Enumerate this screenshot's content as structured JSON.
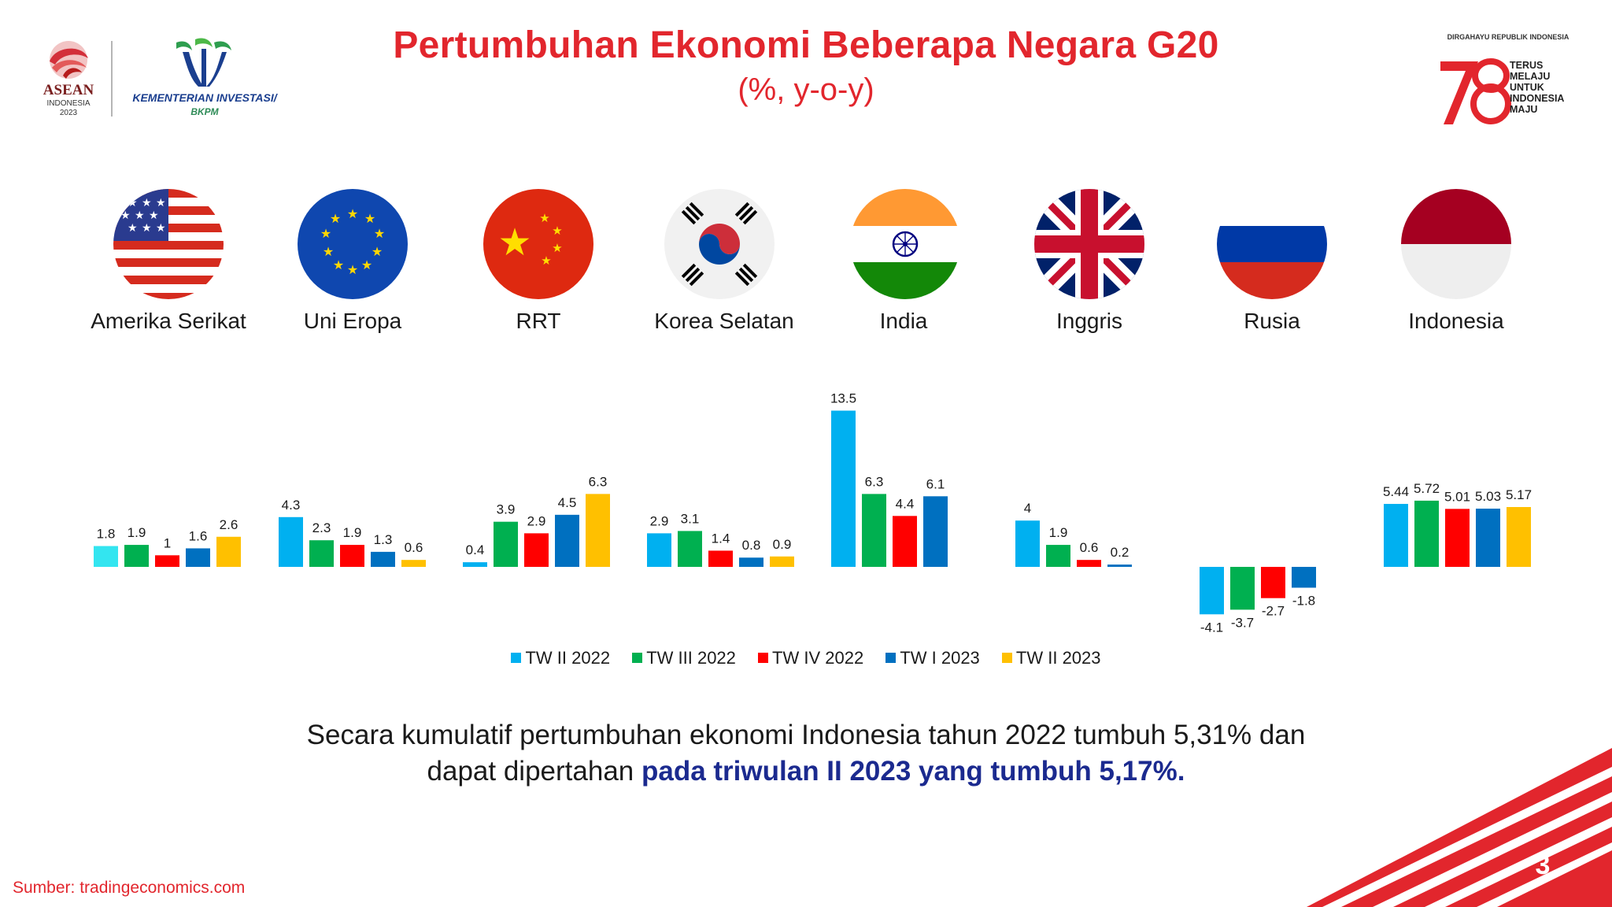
{
  "header": {
    "title": "Pertumbuhan Ekonomi Beberapa Negara G20",
    "subtitle": "(%, y-o-y)"
  },
  "logos": {
    "asean_word": "ASEAN",
    "asean_sub1": "INDONESIA",
    "asean_sub2": "2023",
    "kemen_name": "KEMENTERIAN INVESTASI/",
    "kemen_sub": "BKPM",
    "dirgahayu": "DIRGAHAYU REPUBLIK INDONESIA",
    "hut_lines": [
      "TERUS",
      "MELAJU",
      "UNTUK",
      "INDONESIA",
      "MAJU"
    ]
  },
  "countries": [
    {
      "label": "Amerika Serikat",
      "flag": "usa-flag-icon"
    },
    {
      "label": "Uni Eropa",
      "flag": "eu-flag-icon"
    },
    {
      "label": "RRT",
      "flag": "china-flag-icon"
    },
    {
      "label": "Korea Selatan",
      "flag": "south-korea-flag-icon"
    },
    {
      "label": "India",
      "flag": "india-flag-icon"
    },
    {
      "label": "Inggris",
      "flag": "uk-flag-icon"
    },
    {
      "label": "Rusia",
      "flag": "russia-flag-icon"
    },
    {
      "label": "Indonesia",
      "flag": "indonesia-flag-icon"
    }
  ],
  "chart_data": {
    "type": "bar",
    "categories": [
      "Amerika Serikat",
      "Uni Eropa",
      "RRT",
      "Korea Selatan",
      "India",
      "Inggris",
      "Rusia",
      "Indonesia"
    ],
    "series": [
      {
        "name": "TW II 2022",
        "color": "#00b0f0",
        "values": [
          1.8,
          4.3,
          0.4,
          2.9,
          13.5,
          4,
          -4.1,
          5.44
        ],
        "labels": [
          "1.8",
          "4.3",
          "0.4",
          "2.9",
          "13.5",
          "4",
          "-4.1",
          "5.44"
        ]
      },
      {
        "name": "TW III 2022",
        "color": "#00b050",
        "values": [
          1.9,
          2.3,
          3.9,
          3.1,
          6.3,
          1.9,
          -3.7,
          5.72
        ],
        "labels": [
          "1.9",
          "2.3",
          "3.9",
          "3.1",
          "6.3",
          "1.9",
          "-3.7",
          "5.72"
        ]
      },
      {
        "name": "TW IV 2022",
        "color": "#ff0000",
        "values": [
          1,
          1.9,
          2.9,
          1.4,
          4.4,
          0.6,
          -2.7,
          5.01
        ],
        "labels": [
          "1",
          "1.9",
          "2.9",
          "1.4",
          "4.4",
          "0.6",
          "-2.7",
          "5.01"
        ]
      },
      {
        "name": "TW I 2023",
        "color": "#0070c0",
        "values": [
          1.6,
          1.3,
          4.5,
          0.8,
          6.1,
          0.2,
          -1.8,
          5.03
        ],
        "labels": [
          "1.6",
          "1.3",
          "4.5",
          "0.8",
          "6.1",
          "0.2",
          "-1.8",
          "5.03"
        ]
      },
      {
        "name": "TW II 2023",
        "color": "#ffc000",
        "values": [
          2.6,
          0.6,
          6.3,
          0.9,
          null,
          null,
          null,
          5.17
        ],
        "labels": [
          "2.6",
          "0.6",
          "6.3",
          "0.9",
          null,
          null,
          null,
          "5.17"
        ]
      }
    ],
    "first_bar_color_override": "#33e5f0",
    "ylim": [
      -4.1,
      13.5
    ],
    "legend_position": "bottom",
    "grid": false
  },
  "statement": {
    "line1": "Secara kumulatif pertumbuhan ekonomi Indonesia tahun 2022  tumbuh 5,31% dan",
    "line2_normal": "dapat dipertahan ",
    "line2_highlight": "pada triwulan II 2023 yang tumbuh 5,17%."
  },
  "source": "Sumber: tradingeconomics.com",
  "page_number": "3",
  "colors": {
    "title_red": "#e2262d",
    "highlight_blue": "#1b2a8f"
  }
}
